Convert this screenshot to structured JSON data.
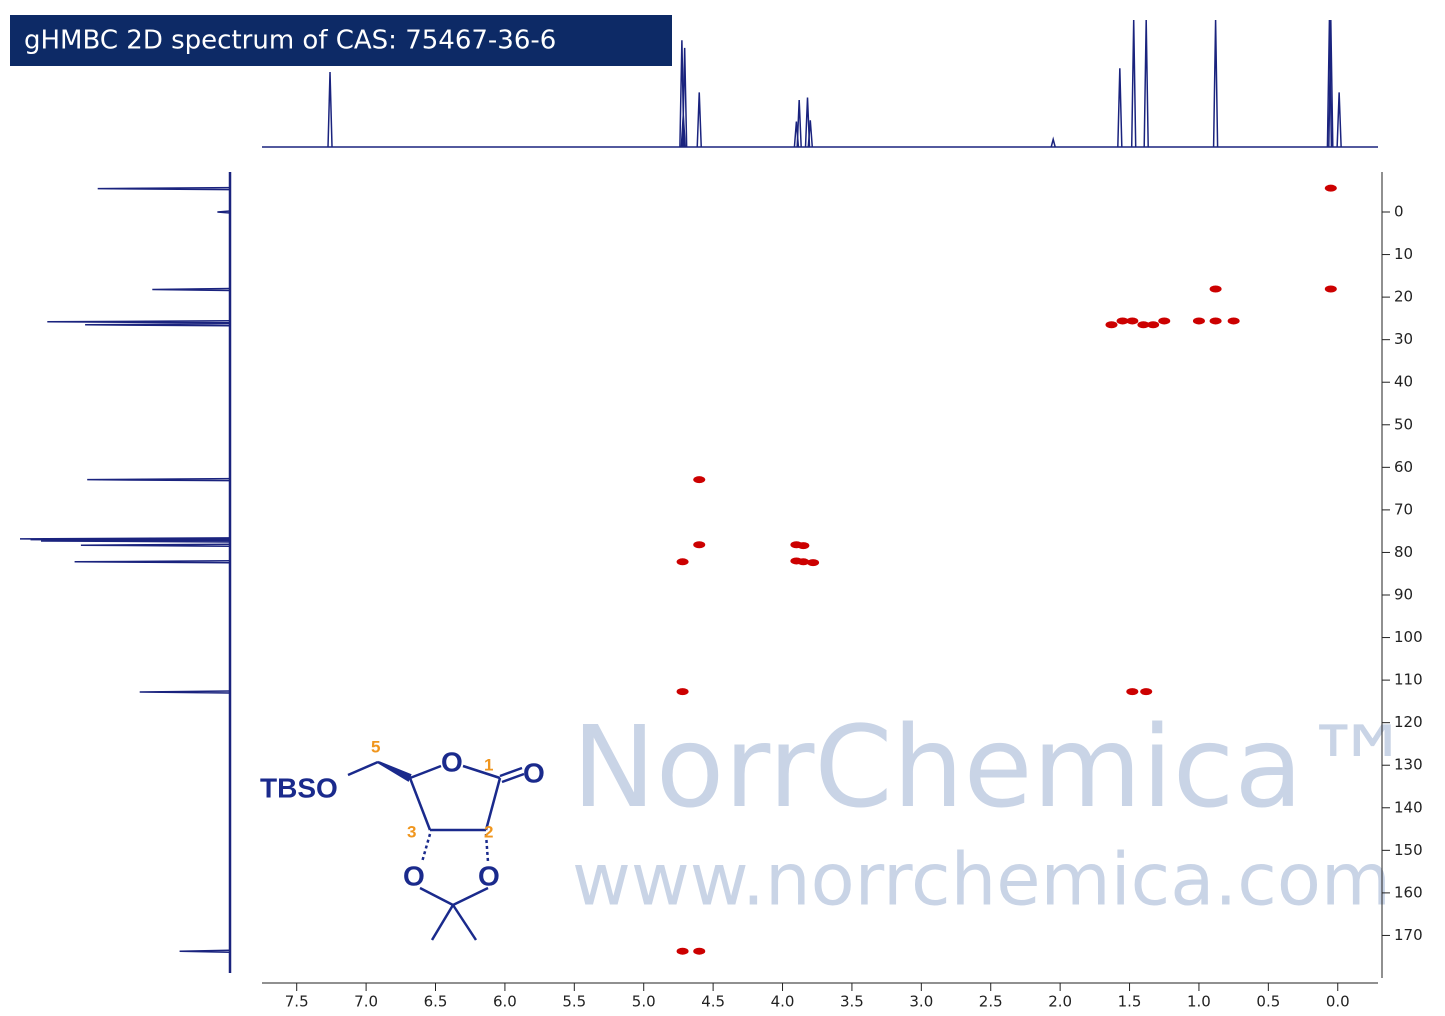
{
  "chart_data": {
    "type": "hmbc",
    "title": "gHMBC 2D spectrum of  CAS: 75467-36-6",
    "xlim": [
      7.75,
      -0.29
    ],
    "xticks": [
      7.5,
      {
        "value": 7,
        "label": "7.0"
      },
      6.5,
      {
        "value": 6,
        "label": "6.0"
      },
      5.5,
      {
        "value": 5,
        "label": "5.0"
      },
      4.5,
      {
        "value": 4,
        "label": "4.0"
      },
      3.5,
      {
        "value": 3,
        "label": "3.0"
      },
      2.5,
      {
        "value": 2,
        "label": "2.0"
      },
      1.5,
      {
        "value": 1,
        "label": "1.0"
      },
      0.5,
      {
        "value": 0,
        "label": "0.0"
      }
    ],
    "ylim": [
      -9.4,
      180
    ],
    "yticks": [
      0,
      10,
      20,
      30,
      40,
      50,
      60,
      70,
      80,
      90,
      100,
      110,
      120,
      130,
      140,
      150,
      160,
      170
    ],
    "cross_peaks": {
      "color": "#cc0000",
      "x": [
        0.05,
        0.88,
        0.05,
        0.88,
        0.75,
        1.0,
        1.63,
        1.55,
        1.48,
        1.4,
        1.33,
        1.25,
        4.6,
        4.6,
        4.72,
        3.9,
        3.85,
        3.9,
        3.85,
        3.78,
        4.72,
        1.48,
        1.38,
        4.72,
        4.6
      ],
      "values": [
        -5.6,
        18.1,
        18.1,
        25.6,
        25.6,
        25.6,
        26.5,
        25.6,
        25.6,
        26.5,
        26.5,
        25.6,
        62.9,
        78.2,
        82.2,
        78.2,
        78.4,
        82.0,
        82.2,
        82.4,
        112.7,
        112.7,
        112.7,
        173.7,
        173.7
      ]
    },
    "proton_projection": {
      "color": "#1a237e",
      "x": [
        7.26,
        4.725,
        4.715,
        4.705,
        4.6,
        3.9,
        3.88,
        3.82,
        3.8,
        2.05,
        1.57,
        1.47,
        1.38,
        0.88,
        0.06,
        0.05,
        -0.01
      ],
      "values": [
        59,
        84,
        25,
        78,
        43,
        20,
        37,
        39,
        21,
        6,
        62,
        100,
        100,
        100,
        100,
        100,
        43
      ]
    },
    "carbon_projection": {
      "color": "#1a237e",
      "x": [
        -5.5,
        0,
        18.2,
        25.8,
        26.5,
        62.9,
        76.8,
        77.0,
        77.3,
        78.3,
        82.2,
        112.8,
        173.7
      ],
      "values": [
        63,
        6,
        37,
        87,
        69,
        68,
        100,
        95,
        90,
        71,
        74,
        43,
        24
      ]
    }
  },
  "watermark": {
    "brand": "NorrChemica™",
    "url": "www.norrchemica.com"
  },
  "structure": {
    "substituent": "TBSO",
    "atoms": [
      "O",
      "O",
      "O",
      "O"
    ],
    "numbers": [
      "5",
      "1",
      "3",
      "2"
    ]
  }
}
